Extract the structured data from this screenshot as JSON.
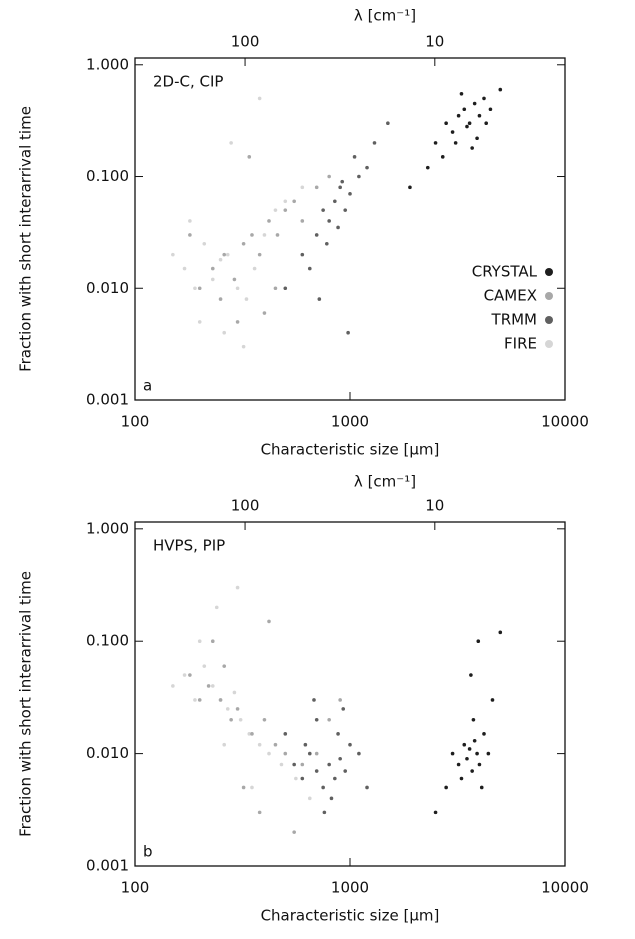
{
  "chart_data": [
    {
      "type": "scatter",
      "annotation": "2D-C, CIP",
      "panel_label": "a",
      "x2label": "λ [cm⁻¹]",
      "xlabel": "Characteristic size [μm]",
      "ylabel": "Fraction with short interarrival time",
      "log_x": true,
      "log_y": true,
      "xlim": [
        100,
        10000
      ],
      "ylim": [
        0.001,
        1.15
      ],
      "xticks": [
        100,
        1000,
        10000
      ],
      "x2ticks": [
        {
          "value": 325,
          "label": "100"
        },
        {
          "value": 2480,
          "label": "10"
        }
      ],
      "yticks": [
        {
          "value": 0.001,
          "label": "0.001"
        },
        {
          "value": 0.01,
          "label": "0.010"
        },
        {
          "value": 0.1,
          "label": "0.100"
        },
        {
          "value": 1,
          "label": "1.000"
        }
      ],
      "legend": "lower right",
      "series": [
        {
          "name": "CRYSTAL",
          "color": "#1e1e1e",
          "x": [
            2500,
            2800,
            3000,
            3200,
            3400,
            3600,
            3800,
            4000,
            4200,
            4500,
            2700,
            3100,
            3500,
            3900,
            4300,
            2300,
            3300,
            3700,
            5000,
            1900
          ],
          "values": [
            0.2,
            0.3,
            0.25,
            0.35,
            0.4,
            0.3,
            0.45,
            0.35,
            0.5,
            0.4,
            0.15,
            0.2,
            0.28,
            0.22,
            0.3,
            0.12,
            0.55,
            0.18,
            0.6,
            0.08
          ]
        },
        {
          "name": "CAMEX",
          "color": "#a8a8a8",
          "x": [
            200,
            230,
            260,
            290,
            320,
            350,
            380,
            420,
            460,
            500,
            550,
            600,
            250,
            300,
            400,
            450,
            700,
            800,
            180,
            340
          ],
          "values": [
            0.01,
            0.015,
            0.02,
            0.012,
            0.025,
            0.03,
            0.02,
            0.04,
            0.03,
            0.05,
            0.06,
            0.04,
            0.008,
            0.005,
            0.006,
            0.01,
            0.08,
            0.1,
            0.03,
            0.15
          ]
        },
        {
          "name": "TRMM",
          "color": "#606060",
          "x": [
            600,
            700,
            750,
            800,
            850,
            900,
            950,
            1000,
            1100,
            1200,
            650,
            780,
            880,
            920,
            1050,
            1300,
            500,
            1500,
            720,
            980
          ],
          "values": [
            0.02,
            0.03,
            0.05,
            0.04,
            0.06,
            0.08,
            0.05,
            0.07,
            0.1,
            0.12,
            0.015,
            0.025,
            0.035,
            0.09,
            0.15,
            0.2,
            0.01,
            0.3,
            0.008,
            0.004
          ]
        },
        {
          "name": "FIRE",
          "color": "#d6d6d6",
          "x": [
            150,
            170,
            190,
            210,
            230,
            250,
            270,
            300,
            330,
            360,
            400,
            450,
            500,
            600,
            200,
            260,
            320,
            180,
            280,
            380
          ],
          "values": [
            0.02,
            0.015,
            0.01,
            0.025,
            0.012,
            0.018,
            0.02,
            0.01,
            0.008,
            0.015,
            0.03,
            0.05,
            0.06,
            0.08,
            0.005,
            0.004,
            0.003,
            0.04,
            0.2,
            0.5
          ]
        }
      ]
    },
    {
      "type": "scatter",
      "annotation": "HVPS, PIP",
      "panel_label": "b",
      "x2label": "λ [cm⁻¹]",
      "xlabel": "Characteristic size [μm]",
      "ylabel": "Fraction with short interarrival time",
      "log_x": true,
      "log_y": true,
      "xlim": [
        100,
        10000
      ],
      "ylim": [
        0.001,
        1.15
      ],
      "xticks": [
        100,
        1000,
        10000
      ],
      "x2ticks": [
        {
          "value": 325,
          "label": "100"
        },
        {
          "value": 2480,
          "label": "10"
        }
      ],
      "yticks": [
        {
          "value": 0.001,
          "label": "0.001"
        },
        {
          "value": 0.01,
          "label": "0.010"
        },
        {
          "value": 0.1,
          "label": "0.100"
        },
        {
          "value": 1,
          "label": "1.000"
        }
      ],
      "series": [
        {
          "color": "#1e1e1e",
          "x": [
            3000,
            3200,
            3400,
            3500,
            3600,
            3700,
            3800,
            3900,
            4000,
            4200,
            4400,
            3300,
            3750,
            4100,
            2800,
            4600,
            3650,
            3950,
            5000,
            2500
          ],
          "values": [
            0.01,
            0.008,
            0.012,
            0.009,
            0.011,
            0.007,
            0.013,
            0.01,
            0.008,
            0.015,
            0.01,
            0.006,
            0.02,
            0.005,
            0.005,
            0.03,
            0.05,
            0.1,
            0.12,
            0.003
          ]
        },
        {
          "color": "#a8a8a8",
          "x": [
            180,
            200,
            220,
            250,
            280,
            300,
            350,
            400,
            450,
            500,
            600,
            700,
            800,
            900,
            260,
            320,
            380,
            550,
            230,
            420
          ],
          "values": [
            0.05,
            0.03,
            0.04,
            0.03,
            0.02,
            0.025,
            0.015,
            0.02,
            0.012,
            0.01,
            0.008,
            0.01,
            0.02,
            0.03,
            0.06,
            0.005,
            0.003,
            0.002,
            0.1,
            0.15
          ]
        },
        {
          "color": "#606060",
          "x": [
            550,
            600,
            650,
            700,
            750,
            800,
            850,
            900,
            950,
            1000,
            700,
            820,
            880,
            1100,
            620,
            760,
            1200,
            500,
            930,
            680
          ],
          "values": [
            0.008,
            0.006,
            0.01,
            0.007,
            0.005,
            0.008,
            0.006,
            0.009,
            0.007,
            0.012,
            0.02,
            0.004,
            0.015,
            0.01,
            0.012,
            0.003,
            0.005,
            0.015,
            0.025,
            0.03
          ]
        },
        {
          "color": "#d6d6d6",
          "x": [
            150,
            170,
            190,
            210,
            230,
            250,
            270,
            290,
            310,
            340,
            380,
            420,
            480,
            560,
            200,
            240,
            300,
            260,
            350,
            650
          ],
          "values": [
            0.04,
            0.05,
            0.03,
            0.06,
            0.04,
            0.03,
            0.025,
            0.035,
            0.02,
            0.015,
            0.012,
            0.01,
            0.008,
            0.006,
            0.1,
            0.2,
            0.3,
            0.012,
            0.005,
            0.004
          ]
        }
      ]
    }
  ]
}
